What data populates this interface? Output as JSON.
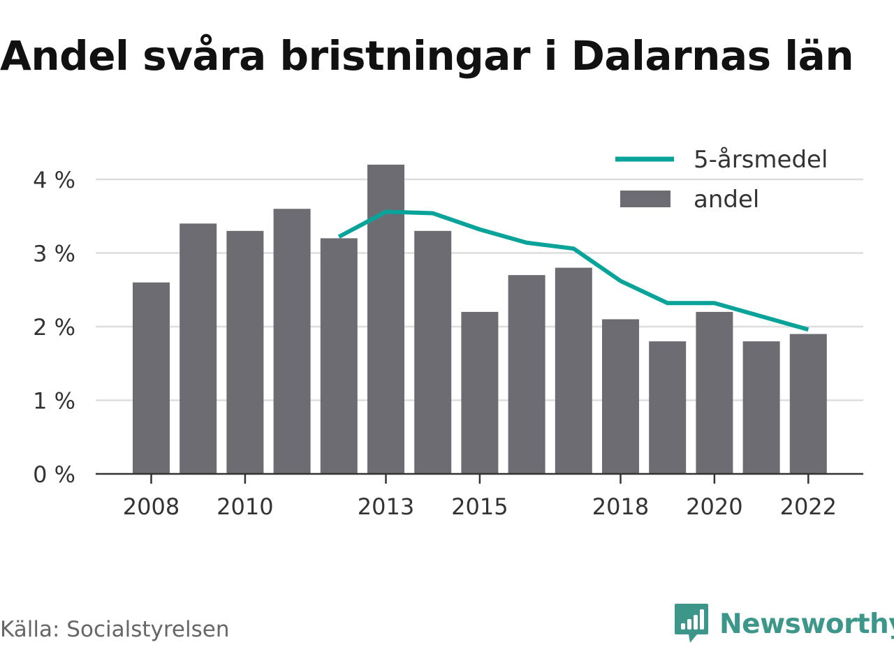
{
  "title": "Andel svåra bristningar i Dalarnas län",
  "source": "Källa: Socialstyrelsen",
  "brand": {
    "name": "Newsworthy",
    "icon": "newsworthy-logo-icon",
    "color": "#3c978a"
  },
  "colors": {
    "bar": "#6d6c73",
    "line": "#0aa39a",
    "grid": "#dddddd",
    "axis": "#333333"
  },
  "chart_data": {
    "type": "bar",
    "x": [
      2008,
      2009,
      2010,
      2011,
      2012,
      2013,
      2014,
      2015,
      2016,
      2017,
      2018,
      2019,
      2020,
      2021,
      2022
    ],
    "xticks": [
      2008,
      2010,
      2013,
      2015,
      2018,
      2020,
      2022
    ],
    "ylim": [
      0,
      4
    ],
    "yticks": [
      0,
      1,
      2,
      3,
      4
    ],
    "ytick_labels": [
      "0 %",
      "1 %",
      "2 %",
      "3 %",
      "4 %"
    ],
    "grid": true,
    "legend_position": "top-right",
    "series": [
      {
        "name": "andel",
        "type": "bar",
        "color": "#6d6c73",
        "values": [
          2.6,
          3.4,
          3.3,
          3.6,
          3.2,
          4.2,
          3.3,
          2.2,
          2.7,
          2.8,
          2.1,
          1.8,
          2.2,
          1.8,
          1.9
        ]
      },
      {
        "name": "5-årsmedel",
        "type": "line",
        "color": "#0aa39a",
        "values": [
          null,
          null,
          null,
          null,
          3.22,
          3.56,
          3.54,
          3.32,
          3.14,
          3.06,
          2.62,
          2.32,
          2.32,
          2.14,
          1.96
        ]
      }
    ]
  }
}
